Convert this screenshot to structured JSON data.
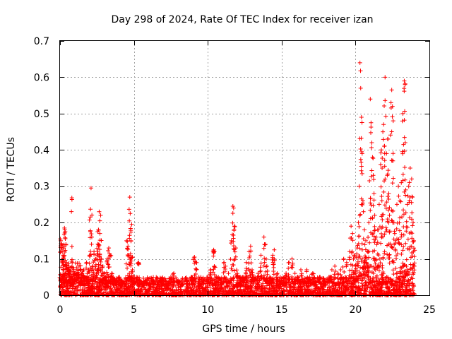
{
  "chart_data": {
    "type": "scatter",
    "title": "Day 298 of 2024, Rate Of TEC Index for receiver izan",
    "xlabel": "GPS time / hours",
    "ylabel": "ROTI / TECUs",
    "xlim": [
      0,
      25
    ],
    "ylim": [
      0,
      0.7
    ],
    "xticks": [
      0,
      5,
      10,
      15,
      20,
      25
    ],
    "yticks": [
      0,
      0.1,
      0.2,
      0.3,
      0.4,
      0.5,
      0.6,
      0.7
    ],
    "xtick_labels": [
      "0",
      "5",
      "10",
      "15",
      "20",
      "25"
    ],
    "ytick_labels": [
      "0",
      "0.1",
      "0.2",
      "0.3",
      "0.4",
      "0.5",
      "0.6",
      "0.7"
    ],
    "grid": true,
    "marker": "+",
    "color": "#ff0000",
    "series": [
      {
        "name": "ROTI",
        "points": [
          [
            0.02,
            0.155
          ],
          [
            0.05,
            0.15
          ],
          [
            0.1,
            0.14
          ],
          [
            0.15,
            0.12
          ],
          [
            0.2,
            0.11
          ],
          [
            0.25,
            0.13
          ],
          [
            0.3,
            0.185
          ],
          [
            0.32,
            0.18
          ],
          [
            0.35,
            0.175
          ],
          [
            0.4,
            0.14
          ],
          [
            0.45,
            0.09
          ],
          [
            0.5,
            0.07
          ],
          [
            0.55,
            0.06
          ],
          [
            0.6,
            0.08
          ],
          [
            0.7,
            0.05
          ],
          [
            0.8,
            0.268
          ],
          [
            0.9,
            0.04
          ],
          [
            1.0,
            0.05
          ],
          [
            1.1,
            0.06
          ],
          [
            1.2,
            0.07
          ],
          [
            1.3,
            0.05
          ],
          [
            1.4,
            0.04
          ],
          [
            1.5,
            0.06
          ],
          [
            1.6,
            0.07
          ],
          [
            1.7,
            0.05
          ],
          [
            1.8,
            0.09
          ],
          [
            1.9,
            0.07
          ],
          [
            2.0,
            0.11
          ],
          [
            2.05,
            0.215
          ],
          [
            2.1,
            0.295
          ],
          [
            2.15,
            0.16
          ],
          [
            2.2,
            0.08
          ],
          [
            2.3,
            0.12
          ],
          [
            2.4,
            0.1
          ],
          [
            2.5,
            0.11
          ],
          [
            2.55,
            0.175
          ],
          [
            2.6,
            0.18
          ],
          [
            2.65,
            0.23
          ],
          [
            2.7,
            0.17
          ],
          [
            2.75,
            0.22
          ],
          [
            2.8,
            0.1
          ],
          [
            2.9,
            0.08
          ],
          [
            3.0,
            0.06
          ],
          [
            3.1,
            0.05
          ],
          [
            3.2,
            0.1
          ],
          [
            3.3,
            0.13
          ],
          [
            3.4,
            0.11
          ],
          [
            3.5,
            0.06
          ],
          [
            3.6,
            0.05
          ],
          [
            3.8,
            0.04
          ],
          [
            4.0,
            0.05
          ],
          [
            4.2,
            0.04
          ],
          [
            4.4,
            0.03
          ],
          [
            4.5,
            0.15
          ],
          [
            4.6,
            0.135
          ],
          [
            4.7,
            0.085
          ],
          [
            4.72,
            0.27
          ],
          [
            4.75,
            0.225
          ],
          [
            4.8,
            0.15
          ],
          [
            4.85,
            0.195
          ],
          [
            4.9,
            0.07
          ],
          [
            5.0,
            0.04
          ],
          [
            5.2,
            0.05
          ],
          [
            5.3,
            0.09
          ],
          [
            5.4,
            0.04
          ],
          [
            5.6,
            0.03
          ],
          [
            5.8,
            0.04
          ],
          [
            6.0,
            0.03
          ],
          [
            6.3,
            0.04
          ],
          [
            6.6,
            0.03
          ],
          [
            6.9,
            0.04
          ],
          [
            7.2,
            0.03
          ],
          [
            7.5,
            0.05
          ],
          [
            7.7,
            0.06
          ],
          [
            8.0,
            0.04
          ],
          [
            8.3,
            0.03
          ],
          [
            8.6,
            0.04
          ],
          [
            8.9,
            0.05
          ],
          [
            9.1,
            0.105
          ],
          [
            9.2,
            0.09
          ],
          [
            9.4,
            0.05
          ],
          [
            9.7,
            0.04
          ],
          [
            10.0,
            0.05
          ],
          [
            10.2,
            0.07
          ],
          [
            10.4,
            0.125
          ],
          [
            10.45,
            0.12
          ],
          [
            10.6,
            0.05
          ],
          [
            10.9,
            0.04
          ],
          [
            11.1,
            0.09
          ],
          [
            11.2,
            0.08
          ],
          [
            11.4,
            0.06
          ],
          [
            11.6,
            0.15
          ],
          [
            11.7,
            0.245
          ],
          [
            11.75,
            0.24
          ],
          [
            11.8,
            0.19
          ],
          [
            11.9,
            0.13
          ],
          [
            12.0,
            0.06
          ],
          [
            12.2,
            0.05
          ],
          [
            12.4,
            0.04
          ],
          [
            12.6,
            0.09
          ],
          [
            12.8,
            0.12
          ],
          [
            12.9,
            0.135
          ],
          [
            13.0,
            0.07
          ],
          [
            13.2,
            0.05
          ],
          [
            13.4,
            0.06
          ],
          [
            13.6,
            0.11
          ],
          [
            13.8,
            0.16
          ],
          [
            13.9,
            0.14
          ],
          [
            14.0,
            0.08
          ],
          [
            14.2,
            0.05
          ],
          [
            14.4,
            0.11
          ],
          [
            14.5,
            0.125
          ],
          [
            14.7,
            0.06
          ],
          [
            14.9,
            0.05
          ],
          [
            15.1,
            0.04
          ],
          [
            15.3,
            0.06
          ],
          [
            15.5,
            0.09
          ],
          [
            15.7,
            0.1
          ],
          [
            15.9,
            0.06
          ],
          [
            16.1,
            0.05
          ],
          [
            16.3,
            0.07
          ],
          [
            16.5,
            0.04
          ],
          [
            16.7,
            0.07
          ],
          [
            16.9,
            0.05
          ],
          [
            17.1,
            0.06
          ],
          [
            17.3,
            0.04
          ],
          [
            17.6,
            0.05
          ],
          [
            17.9,
            0.04
          ],
          [
            18.2,
            0.05
          ],
          [
            18.4,
            0.07
          ],
          [
            18.6,
            0.08
          ],
          [
            18.8,
            0.06
          ],
          [
            19.0,
            0.07
          ],
          [
            19.2,
            0.1
          ],
          [
            19.4,
            0.09
          ],
          [
            19.6,
            0.12
          ],
          [
            19.7,
            0.19
          ],
          [
            19.8,
            0.17
          ],
          [
            19.9,
            0.11
          ],
          [
            20.0,
            0.08
          ],
          [
            20.1,
            0.13
          ],
          [
            20.2,
            0.2
          ],
          [
            20.25,
            0.3
          ],
          [
            20.3,
            0.64
          ],
          [
            20.35,
            0.57
          ],
          [
            20.4,
            0.49
          ],
          [
            20.45,
            0.39
          ],
          [
            20.5,
            0.26
          ],
          [
            20.6,
            0.18
          ],
          [
            20.7,
            0.15
          ],
          [
            20.8,
            0.12
          ],
          [
            20.9,
            0.2
          ],
          [
            21.0,
            0.54
          ],
          [
            21.05,
            0.475
          ],
          [
            21.1,
            0.42
          ],
          [
            21.15,
            0.38
          ],
          [
            21.2,
            0.33
          ],
          [
            21.25,
            0.28
          ],
          [
            21.3,
            0.22
          ],
          [
            21.4,
            0.16
          ],
          [
            21.5,
            0.18
          ],
          [
            21.6,
            0.25
          ],
          [
            21.7,
            0.36
          ],
          [
            21.75,
            0.4
          ],
          [
            21.8,
            0.35
          ],
          [
            21.85,
            0.45
          ],
          [
            21.9,
            0.47
          ],
          [
            21.95,
            0.41
          ],
          [
            22.0,
            0.6
          ],
          [
            22.1,
            0.39
          ],
          [
            22.15,
            0.33
          ],
          [
            22.2,
            0.43
          ],
          [
            22.25,
            0.28
          ],
          [
            22.3,
            0.22
          ],
          [
            22.4,
            0.53
          ],
          [
            22.45,
            0.565
          ],
          [
            22.5,
            0.52
          ],
          [
            22.55,
            0.48
          ],
          [
            22.6,
            0.2
          ],
          [
            22.7,
            0.15
          ],
          [
            22.8,
            0.25
          ],
          [
            22.9,
            0.3
          ],
          [
            23.0,
            0.26
          ],
          [
            23.1,
            0.31
          ],
          [
            23.2,
            0.5
          ],
          [
            23.25,
            0.415
          ],
          [
            23.3,
            0.59
          ],
          [
            23.35,
            0.58
          ],
          [
            23.4,
            0.29
          ],
          [
            23.5,
            0.25
          ],
          [
            23.6,
            0.3
          ],
          [
            23.7,
            0.35
          ],
          [
            23.8,
            0.32
          ],
          [
            23.85,
            0.27
          ],
          [
            23.9,
            0.2
          ],
          [
            23.95,
            0.15
          ]
        ]
      }
    ],
    "baseline_noise": {
      "description": "dense band of points between 0 and ~0.05 across 0-24 hours",
      "range_y": [
        0,
        0.05
      ],
      "range_x": [
        0,
        24
      ]
    }
  }
}
